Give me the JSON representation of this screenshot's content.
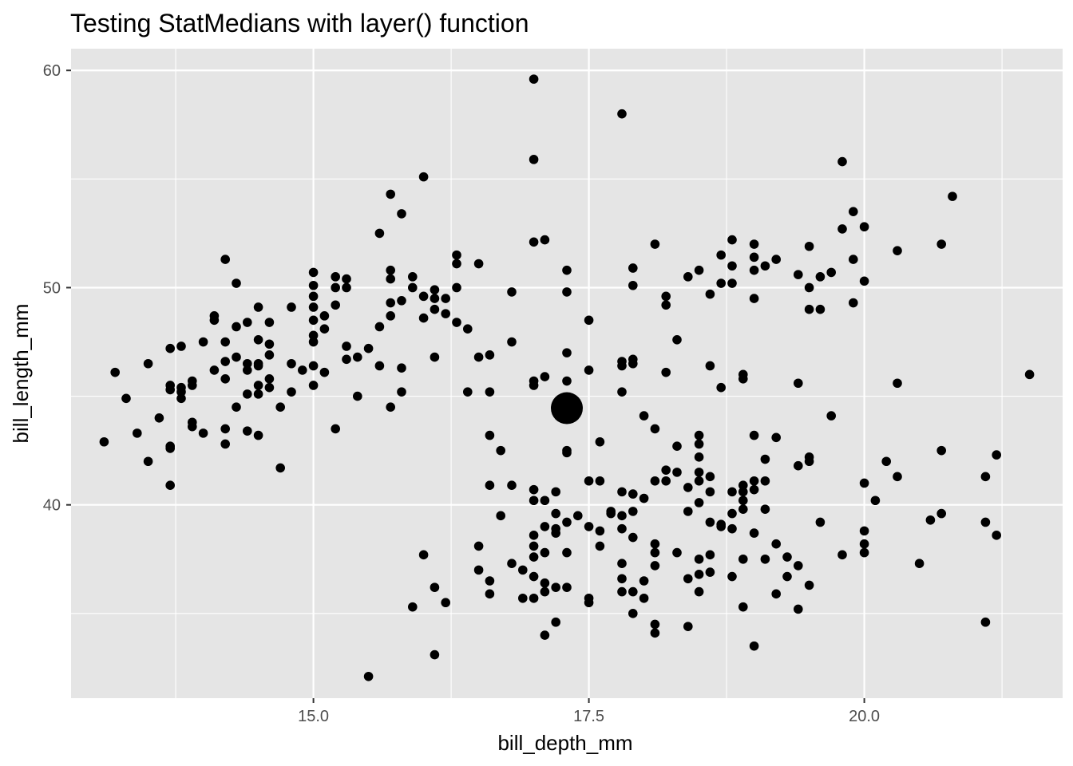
{
  "chart_data": {
    "type": "scatter",
    "title": "Testing StatMedians with layer() function",
    "xlabel": "bill_depth_mm",
    "ylabel": "bill_length_mm",
    "xlim": [
      12.8,
      21.8
    ],
    "ylim": [
      31.1,
      61.0
    ],
    "x_ticks": [
      15.0,
      17.5,
      20.0
    ],
    "x_tick_labels": [
      "15.0",
      "17.5",
      "20.0"
    ],
    "y_ticks": [
      40,
      50,
      60
    ],
    "y_tick_labels": [
      "40",
      "50",
      "60"
    ],
    "grid": true,
    "legend": "none",
    "colors": {
      "panel": "#e5e5e5",
      "grid": "#ffffff",
      "point": "#000000"
    },
    "median_point": {
      "x": 17.3,
      "y": 44.45
    },
    "points": [
      [
        13.1,
        42.9
      ],
      [
        13.2,
        46.1
      ],
      [
        13.3,
        44.9
      ],
      [
        13.4,
        43.3
      ],
      [
        13.5,
        46.5
      ],
      [
        13.5,
        42.0
      ],
      [
        13.6,
        44.0
      ],
      [
        13.7,
        47.2
      ],
      [
        13.7,
        45.5
      ],
      [
        13.7,
        45.3
      ],
      [
        13.7,
        42.7
      ],
      [
        13.7,
        42.6
      ],
      [
        13.7,
        40.9
      ],
      [
        13.8,
        47.3
      ],
      [
        13.8,
        45.4
      ],
      [
        13.8,
        45.2
      ],
      [
        13.8,
        44.9
      ],
      [
        13.9,
        45.7
      ],
      [
        13.9,
        45.5
      ],
      [
        13.9,
        43.8
      ],
      [
        13.9,
        43.6
      ],
      [
        14.0,
        47.5
      ],
      [
        14.0,
        43.3
      ],
      [
        14.1,
        48.7
      ],
      [
        14.1,
        48.5
      ],
      [
        14.1,
        46.2
      ],
      [
        14.2,
        51.3
      ],
      [
        14.2,
        47.5
      ],
      [
        14.2,
        46.6
      ],
      [
        14.2,
        45.8
      ],
      [
        14.2,
        43.5
      ],
      [
        14.2,
        42.8
      ],
      [
        14.3,
        50.2
      ],
      [
        14.3,
        48.2
      ],
      [
        14.3,
        46.8
      ],
      [
        14.3,
        44.5
      ],
      [
        14.4,
        48.4
      ],
      [
        14.4,
        46.5
      ],
      [
        14.4,
        46.2
      ],
      [
        14.4,
        45.1
      ],
      [
        14.4,
        43.4
      ],
      [
        14.5,
        49.1
      ],
      [
        14.5,
        47.6
      ],
      [
        14.5,
        46.5
      ],
      [
        14.5,
        46.4
      ],
      [
        14.5,
        45.5
      ],
      [
        14.5,
        45.1
      ],
      [
        14.5,
        43.2
      ],
      [
        14.6,
        48.4
      ],
      [
        14.6,
        47.4
      ],
      [
        14.6,
        46.9
      ],
      [
        14.6,
        45.8
      ],
      [
        14.6,
        45.4
      ],
      [
        14.7,
        44.5
      ],
      [
        14.7,
        41.7
      ],
      [
        14.8,
        49.1
      ],
      [
        14.8,
        46.5
      ],
      [
        14.8,
        45.2
      ],
      [
        14.9,
        46.2
      ],
      [
        15.0,
        50.7
      ],
      [
        15.0,
        50.1
      ],
      [
        15.0,
        49.6
      ],
      [
        15.0,
        49.1
      ],
      [
        15.0,
        48.5
      ],
      [
        15.0,
        47.8
      ],
      [
        15.0,
        47.5
      ],
      [
        15.0,
        46.4
      ],
      [
        15.0,
        45.5
      ],
      [
        15.1,
        48.7
      ],
      [
        15.1,
        48.1
      ],
      [
        15.1,
        46.1
      ],
      [
        15.2,
        50.5
      ],
      [
        15.2,
        50.0
      ],
      [
        15.2,
        49.2
      ],
      [
        15.2,
        43.5
      ],
      [
        15.3,
        50.4
      ],
      [
        15.3,
        50.0
      ],
      [
        15.3,
        47.3
      ],
      [
        15.3,
        46.7
      ],
      [
        15.4,
        46.8
      ],
      [
        15.4,
        45.0
      ],
      [
        15.5,
        47.2
      ],
      [
        15.5,
        32.1
      ],
      [
        15.6,
        52.5
      ],
      [
        15.6,
        48.2
      ],
      [
        15.6,
        46.4
      ],
      [
        15.7,
        54.3
      ],
      [
        15.7,
        50.8
      ],
      [
        15.7,
        50.4
      ],
      [
        15.7,
        49.3
      ],
      [
        15.7,
        48.7
      ],
      [
        15.7,
        44.5
      ],
      [
        15.8,
        53.4
      ],
      [
        15.8,
        49.4
      ],
      [
        15.8,
        46.3
      ],
      [
        15.8,
        45.2
      ],
      [
        15.9,
        50.5
      ],
      [
        15.9,
        50.0
      ],
      [
        15.9,
        35.3
      ],
      [
        16.0,
        55.1
      ],
      [
        16.0,
        49.6
      ],
      [
        16.0,
        48.6
      ],
      [
        16.0,
        37.7
      ],
      [
        16.1,
        49.9
      ],
      [
        16.1,
        49.5
      ],
      [
        16.1,
        49.0
      ],
      [
        16.1,
        46.8
      ],
      [
        16.1,
        36.2
      ],
      [
        16.1,
        33.1
      ],
      [
        16.2,
        49.5
      ],
      [
        16.2,
        48.8
      ],
      [
        16.2,
        35.5
      ],
      [
        16.3,
        51.5
      ],
      [
        16.3,
        51.1
      ],
      [
        16.3,
        50.0
      ],
      [
        16.3,
        48.4
      ],
      [
        16.4,
        48.1
      ],
      [
        16.4,
        45.2
      ],
      [
        16.5,
        51.1
      ],
      [
        16.5,
        46.8
      ],
      [
        16.5,
        38.1
      ],
      [
        16.5,
        37.0
      ],
      [
        16.6,
        46.9
      ],
      [
        16.6,
        45.2
      ],
      [
        16.6,
        43.2
      ],
      [
        16.6,
        40.9
      ],
      [
        16.6,
        36.5
      ],
      [
        16.6,
        35.9
      ],
      [
        16.7,
        42.5
      ],
      [
        16.7,
        39.5
      ],
      [
        16.8,
        49.8
      ],
      [
        16.8,
        47.5
      ],
      [
        16.8,
        40.9
      ],
      [
        16.8,
        37.3
      ],
      [
        16.9,
        37.0
      ],
      [
        16.9,
        35.7
      ],
      [
        17.0,
        59.6
      ],
      [
        17.0,
        55.9
      ],
      [
        17.0,
        52.1
      ],
      [
        17.0,
        45.7
      ],
      [
        17.0,
        45.5
      ],
      [
        17.0,
        40.7
      ],
      [
        17.0,
        40.2
      ],
      [
        17.0,
        38.6
      ],
      [
        17.0,
        38.1
      ],
      [
        17.0,
        37.6
      ],
      [
        17.0,
        36.7
      ],
      [
        17.0,
        35.7
      ],
      [
        17.1,
        52.2
      ],
      [
        17.1,
        45.9
      ],
      [
        17.1,
        40.2
      ],
      [
        17.1,
        39.0
      ],
      [
        17.1,
        37.8
      ],
      [
        17.1,
        36.4
      ],
      [
        17.1,
        36.0
      ],
      [
        17.1,
        34.0
      ],
      [
        17.2,
        40.6
      ],
      [
        17.2,
        39.6
      ],
      [
        17.2,
        38.9
      ],
      [
        17.2,
        38.7
      ],
      [
        17.2,
        36.2
      ],
      [
        17.2,
        34.6
      ],
      [
        17.3,
        50.8
      ],
      [
        17.3,
        49.8
      ],
      [
        17.3,
        47.0
      ],
      [
        17.3,
        45.7
      ],
      [
        17.3,
        42.5
      ],
      [
        17.3,
        42.4
      ],
      [
        17.3,
        39.2
      ],
      [
        17.3,
        37.8
      ],
      [
        17.3,
        36.2
      ],
      [
        17.4,
        39.5
      ],
      [
        17.5,
        48.5
      ],
      [
        17.5,
        46.2
      ],
      [
        17.5,
        41.1
      ],
      [
        17.5,
        39.0
      ],
      [
        17.5,
        35.7
      ],
      [
        17.5,
        35.5
      ],
      [
        17.6,
        42.9
      ],
      [
        17.6,
        41.1
      ],
      [
        17.6,
        38.8
      ],
      [
        17.6,
        38.1
      ],
      [
        17.7,
        39.7
      ],
      [
        17.7,
        39.6
      ],
      [
        17.8,
        58.0
      ],
      [
        17.8,
        46.6
      ],
      [
        17.8,
        46.4
      ],
      [
        17.8,
        45.2
      ],
      [
        17.8,
        40.6
      ],
      [
        17.8,
        39.5
      ],
      [
        17.8,
        38.9
      ],
      [
        17.8,
        37.3
      ],
      [
        17.8,
        36.6
      ],
      [
        17.8,
        36.0
      ],
      [
        17.9,
        50.9
      ],
      [
        17.9,
        50.1
      ],
      [
        17.9,
        46.7
      ],
      [
        17.9,
        46.5
      ],
      [
        17.9,
        40.5
      ],
      [
        17.9,
        39.7
      ],
      [
        17.9,
        38.5
      ],
      [
        17.9,
        36.0
      ],
      [
        17.9,
        35.0
      ],
      [
        18.0,
        44.1
      ],
      [
        18.0,
        40.3
      ],
      [
        18.0,
        36.5
      ],
      [
        18.0,
        35.7
      ],
      [
        18.1,
        52.0
      ],
      [
        18.1,
        43.5
      ],
      [
        18.1,
        41.1
      ],
      [
        18.1,
        38.2
      ],
      [
        18.1,
        37.8
      ],
      [
        18.1,
        37.2
      ],
      [
        18.1,
        34.5
      ],
      [
        18.1,
        34.1
      ],
      [
        18.2,
        49.6
      ],
      [
        18.2,
        49.2
      ],
      [
        18.2,
        46.1
      ],
      [
        18.2,
        41.6
      ],
      [
        18.2,
        41.1
      ],
      [
        18.3,
        47.6
      ],
      [
        18.3,
        42.7
      ],
      [
        18.3,
        41.5
      ],
      [
        18.3,
        37.8
      ],
      [
        18.4,
        50.5
      ],
      [
        18.4,
        40.8
      ],
      [
        18.4,
        39.7
      ],
      [
        18.4,
        36.6
      ],
      [
        18.4,
        34.4
      ],
      [
        18.5,
        50.8
      ],
      [
        18.5,
        43.2
      ],
      [
        18.5,
        42.8
      ],
      [
        18.5,
        42.2
      ],
      [
        18.5,
        41.5
      ],
      [
        18.5,
        41.1
      ],
      [
        18.5,
        40.1
      ],
      [
        18.5,
        37.5
      ],
      [
        18.5,
        36.8
      ],
      [
        18.5,
        36.0
      ],
      [
        18.6,
        49.7
      ],
      [
        18.6,
        46.4
      ],
      [
        18.6,
        41.3
      ],
      [
        18.6,
        40.6
      ],
      [
        18.6,
        39.2
      ],
      [
        18.6,
        37.7
      ],
      [
        18.6,
        36.9
      ],
      [
        18.7,
        51.5
      ],
      [
        18.7,
        50.2
      ],
      [
        18.7,
        45.4
      ],
      [
        18.7,
        39.1
      ],
      [
        18.7,
        39.0
      ],
      [
        18.8,
        52.2
      ],
      [
        18.8,
        51.0
      ],
      [
        18.8,
        50.2
      ],
      [
        18.8,
        40.6
      ],
      [
        18.8,
        39.6
      ],
      [
        18.8,
        38.9
      ],
      [
        18.8,
        36.7
      ],
      [
        18.9,
        46.0
      ],
      [
        18.9,
        45.8
      ],
      [
        18.9,
        40.9
      ],
      [
        18.9,
        40.6
      ],
      [
        18.9,
        40.2
      ],
      [
        18.9,
        39.8
      ],
      [
        18.9,
        37.5
      ],
      [
        18.9,
        35.3
      ],
      [
        19.0,
        52.0
      ],
      [
        19.0,
        51.4
      ],
      [
        19.0,
        50.8
      ],
      [
        19.0,
        49.5
      ],
      [
        19.0,
        43.2
      ],
      [
        19.0,
        41.1
      ],
      [
        19.0,
        40.7
      ],
      [
        19.0,
        38.7
      ],
      [
        19.0,
        33.5
      ],
      [
        19.1,
        51.0
      ],
      [
        19.1,
        42.1
      ],
      [
        19.1,
        41.1
      ],
      [
        19.1,
        39.8
      ],
      [
        19.1,
        37.5
      ],
      [
        19.2,
        51.3
      ],
      [
        19.2,
        43.1
      ],
      [
        19.2,
        38.2
      ],
      [
        19.2,
        35.9
      ],
      [
        19.3,
        37.6
      ],
      [
        19.3,
        36.7
      ],
      [
        19.4,
        50.6
      ],
      [
        19.4,
        45.6
      ],
      [
        19.4,
        41.8
      ],
      [
        19.4,
        37.2
      ],
      [
        19.4,
        35.2
      ],
      [
        19.5,
        51.9
      ],
      [
        19.5,
        50.0
      ],
      [
        19.5,
        49.0
      ],
      [
        19.5,
        42.2
      ],
      [
        19.5,
        42.0
      ],
      [
        19.5,
        36.3
      ],
      [
        19.6,
        50.5
      ],
      [
        19.6,
        49.0
      ],
      [
        19.6,
        39.2
      ],
      [
        19.7,
        50.7
      ],
      [
        19.7,
        44.1
      ],
      [
        19.8,
        55.8
      ],
      [
        19.8,
        52.7
      ],
      [
        19.8,
        37.7
      ],
      [
        19.9,
        53.5
      ],
      [
        19.9,
        51.3
      ],
      [
        19.9,
        49.3
      ],
      [
        20.0,
        52.8
      ],
      [
        20.0,
        50.3
      ],
      [
        20.0,
        41.0
      ],
      [
        20.0,
        38.8
      ],
      [
        20.0,
        38.2
      ],
      [
        20.0,
        37.8
      ],
      [
        20.1,
        40.2
      ],
      [
        20.2,
        42.0
      ],
      [
        20.3,
        51.7
      ],
      [
        20.3,
        45.6
      ],
      [
        20.3,
        41.3
      ],
      [
        20.5,
        37.3
      ],
      [
        20.6,
        39.3
      ],
      [
        20.7,
        52.0
      ],
      [
        20.7,
        42.5
      ],
      [
        20.7,
        39.6
      ],
      [
        20.8,
        54.2
      ],
      [
        21.1,
        41.3
      ],
      [
        21.1,
        39.2
      ],
      [
        21.1,
        34.6
      ],
      [
        21.2,
        42.3
      ],
      [
        21.2,
        38.6
      ],
      [
        21.5,
        46.0
      ]
    ]
  }
}
